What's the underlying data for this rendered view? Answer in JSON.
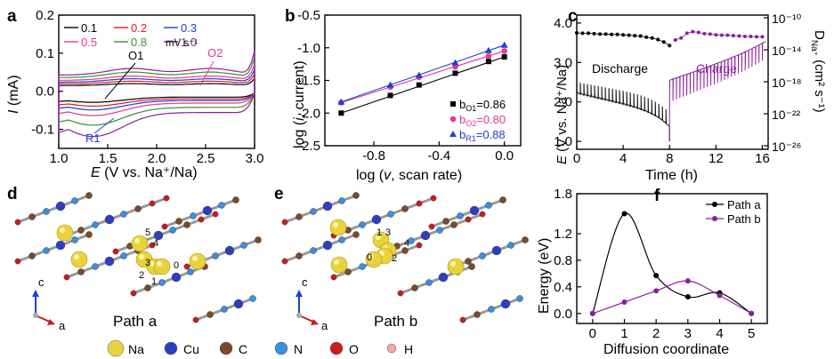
{
  "panel_labels": {
    "a": "a",
    "b": "b",
    "c": "c",
    "d": "d",
    "e": "e",
    "f": "f"
  },
  "chart_data": [
    {
      "id": "a",
      "type": "line",
      "xlabel_var": "E",
      "xlabel_rest": " (V vs. Na⁺/Na)",
      "ylabel_var": "I",
      "ylabel_rest": " (mA)",
      "xlim": [
        1.0,
        3.0
      ],
      "ylim": [
        -0.15,
        0.2
      ],
      "xticks": [
        "1.0",
        "1.5",
        "2.0",
        "2.5",
        "3.0"
      ],
      "yticks": [
        "-0.1",
        "0.0",
        "0.1",
        "0.2"
      ],
      "legend_unit": "mV s⁻¹",
      "annotations": [
        "O1",
        "O2",
        "R1"
      ],
      "series": [
        {
          "name": "0.1",
          "color": "#000000",
          "cathodic": -0.025,
          "anodic": 0.02
        },
        {
          "name": "0.2",
          "color": "#e31a1c",
          "cathodic": -0.035,
          "anodic": 0.028
        },
        {
          "name": "0.3",
          "color": "#1f3fd6",
          "cathodic": -0.045,
          "anodic": 0.036
        },
        {
          "name": "0.5",
          "color": "#e5398a",
          "cathodic": -0.06,
          "anodic": 0.045
        },
        {
          "name": "0.8",
          "color": "#3a8f2a",
          "cathodic": -0.085,
          "anodic": 0.058
        },
        {
          "name": "1.0",
          "color": "#8a1f9e",
          "cathodic": -0.115,
          "anodic": 0.07
        }
      ]
    },
    {
      "id": "b",
      "type": "scatter",
      "xlabel_pre": "log (",
      "xlabel_var": "v",
      "xlabel_post": ", scan rate)",
      "ylabel_pre": "log (",
      "ylabel_var": "i",
      "ylabel_post": ", current)",
      "xlim": [
        -1.1,
        0.1
      ],
      "ylim": [
        -2.5,
        -0.5
      ],
      "xticks": [
        "-0.8",
        "-0.4",
        "0.0"
      ],
      "yticks": [
        "-2.5",
        "-2.0",
        "-1.5",
        "-1.0",
        "-0.5"
      ],
      "x": [
        -1.0,
        -0.699,
        -0.523,
        -0.301,
        -0.097,
        0.0
      ],
      "series": [
        {
          "name": "b",
          "sub": "O1",
          "value": "=0.86",
          "marker": "square",
          "color": "#000000",
          "y": [
            -2.0,
            -1.73,
            -1.57,
            -1.39,
            -1.21,
            -1.14
          ]
        },
        {
          "name": "b",
          "sub": "O2",
          "value": "=0.80",
          "marker": "circle",
          "color": "#e5398a",
          "y": [
            -1.84,
            -1.6,
            -1.45,
            -1.29,
            -1.13,
            -1.05
          ]
        },
        {
          "name": "b",
          "sub": "R1",
          "value": "=0.88",
          "marker": "triangle",
          "color": "#1f3fd6",
          "y": [
            -1.83,
            -1.57,
            -1.42,
            -1.23,
            -1.04,
            -0.96
          ]
        }
      ]
    },
    {
      "id": "c",
      "type": "line",
      "xlabel": "Time (h)",
      "ylabel_var": "E",
      "ylabel_rest": " (V vs. Na⁺/Na)",
      "y2label": "D",
      "y2label_sub": "Na⁺",
      "y2label_rest": " (cm² s⁻¹)",
      "xlim": [
        0,
        16.5
      ],
      "ylim": [
        0.8,
        4.2
      ],
      "xticks": [
        "0",
        "4",
        "8",
        "12",
        "16"
      ],
      "yticks": [
        "1.0",
        "2.0",
        "3.0",
        "4.0"
      ],
      "y2ticks": [
        "10⁻¹⁰",
        "10⁻¹⁴",
        "10⁻¹⁸",
        "10⁻²²",
        "10⁻²⁶"
      ],
      "annotations": [
        "Discharge",
        "Charge"
      ],
      "discharge_color": "#000000",
      "charge_color": "#8a1f9e",
      "diffusion_discharge_x": [
        0.0,
        0.5,
        1.0,
        1.5,
        2.0,
        2.5,
        3.0,
        3.5,
        4.0,
        4.5,
        5.0,
        5.5,
        6.0,
        6.5,
        7.0,
        7.5,
        8.0
      ],
      "diffusion_discharge_y": [
        3.75,
        3.74,
        3.74,
        3.73,
        3.72,
        3.72,
        3.71,
        3.71,
        3.7,
        3.69,
        3.68,
        3.67,
        3.64,
        3.62,
        3.58,
        3.52,
        3.43
      ],
      "diffusion_charge_x": [
        8.5,
        9.0,
        9.5,
        10.0,
        10.5,
        11.0,
        11.5,
        12.0,
        12.5,
        13.0,
        13.5,
        14.0,
        14.5,
        15.0,
        15.5,
        16.0
      ],
      "diffusion_charge_y": [
        3.57,
        3.62,
        3.74,
        3.78,
        3.76,
        3.73,
        3.72,
        3.7,
        3.69,
        3.69,
        3.68,
        3.67,
        3.66,
        3.66,
        3.65,
        3.65
      ]
    },
    {
      "id": "f",
      "type": "line",
      "xlabel": "Diffusion coordinate",
      "ylabel": "Energy (eV)",
      "xlim": [
        -0.5,
        5.5
      ],
      "ylim": [
        -0.15,
        1.8
      ],
      "xticks": [
        "0",
        "1",
        "2",
        "3",
        "4",
        "5"
      ],
      "yticks": [
        "0.0",
        "0.4",
        "0.8",
        "1.2",
        "1.8"
      ],
      "x": [
        0,
        1,
        2,
        3,
        4,
        5
      ],
      "series": [
        {
          "name": "Path a",
          "color": "#000000",
          "y": [
            0.0,
            1.5,
            0.57,
            0.25,
            0.31,
            0.0
          ]
        },
        {
          "name": "Path b",
          "color": "#8a1f9e",
          "y": [
            0.0,
            0.17,
            0.34,
            0.49,
            0.27,
            0.0
          ]
        }
      ]
    }
  ],
  "structures": {
    "d_caption": "Path a",
    "e_caption": "Path b",
    "d_path_labels": [
      "5",
      "4",
      "3",
      "0",
      "2",
      "1"
    ],
    "e_path_labels": [
      "1",
      "3",
      "4",
      "0",
      "2"
    ],
    "axis_c": "c",
    "axis_a": "a"
  },
  "atom_legend": [
    {
      "label": "Na",
      "color": "#e8d33c"
    },
    {
      "label": "Cu",
      "color": "#2c3fbf"
    },
    {
      "label": "C",
      "color": "#7a4a2a"
    },
    {
      "label": "N",
      "color": "#3b8ee0"
    },
    {
      "label": "O",
      "color": "#c81d1d"
    },
    {
      "label": "H",
      "color": "#f0a8a8"
    }
  ]
}
